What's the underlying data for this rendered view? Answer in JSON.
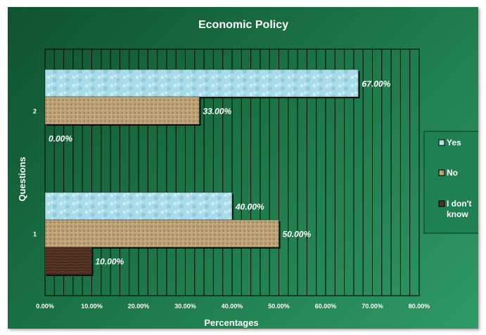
{
  "chart_data": {
    "type": "bar",
    "orientation": "horizontal",
    "title": "Economic Policy",
    "xlabel": "Percentages",
    "ylabel": "Questions",
    "categories": [
      "1",
      "2"
    ],
    "series": [
      {
        "name": "Yes",
        "values": [
          40,
          67
        ],
        "color": "#a9dbe8"
      },
      {
        "name": "No",
        "values": [
          50,
          33
        ],
        "color": "#b59a6e"
      },
      {
        "name": "I don't know",
        "values": [
          10,
          0
        ],
        "color": "#4a2c1e"
      }
    ],
    "value_labels": [
      [
        "40.00%",
        "67.00%"
      ],
      [
        "50.00%",
        "33.00%"
      ],
      [
        "10.00%",
        "0.00%"
      ]
    ],
    "xlim": [
      0,
      80
    ],
    "xticks": [
      "0.00%",
      "10.00%",
      "20.00%",
      "30.00%",
      "40.00%",
      "50.00%",
      "60.00%",
      "70.00%",
      "80.00%"
    ],
    "grid": true,
    "legend_position": "right",
    "background_color": "#1a7344"
  },
  "legend": {
    "yes_label": "Yes",
    "no_label": "No",
    "idk_label_line1": "I don't",
    "idk_label_line2": "know"
  }
}
